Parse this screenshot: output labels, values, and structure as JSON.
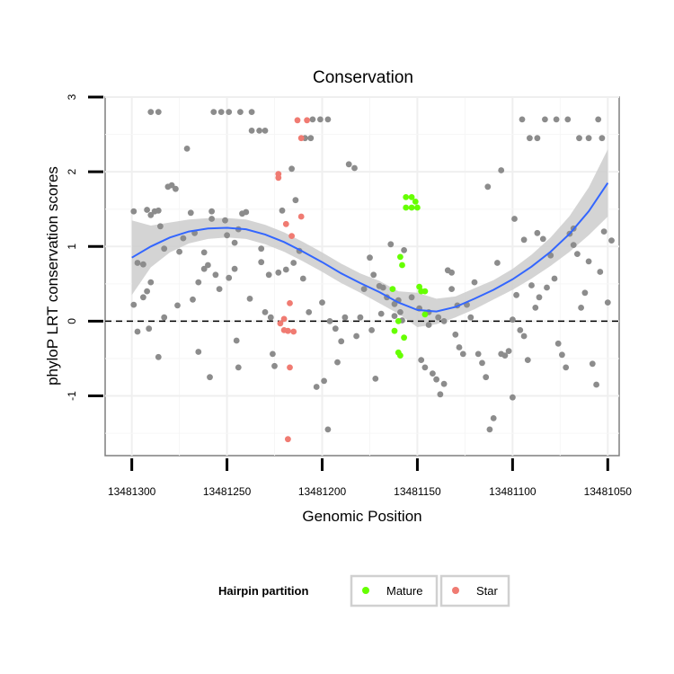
{
  "chart_data": {
    "type": "scatter",
    "title": "Conservation",
    "xlabel": "Genomic Position",
    "ylabel": "phyloP LRT conservation scores",
    "x_reversed": true,
    "xlim": [
      13481314,
      13481044
    ],
    "ylim": [
      -1.8,
      3.0
    ],
    "x_ticks": [
      13481300,
      13481250,
      13481200,
      13481150,
      13481100,
      13481050
    ],
    "x_tick_labels": [
      "13481300",
      "13481250",
      "13481200",
      "13481150",
      "13481100",
      "13481050"
    ],
    "y_ticks": [
      -1,
      0,
      1,
      2,
      3
    ],
    "y_tick_labels": [
      "-1",
      "0",
      "1",
      "2",
      "3"
    ],
    "reference_line": {
      "y": 0,
      "style": "dashed"
    },
    "legend": {
      "title": "Hairpin partition",
      "position": "bottom",
      "entries": [
        {
          "label": "Mature",
          "color": "#66ff00"
        },
        {
          "label": "Star",
          "color": "#f07b72"
        }
      ]
    },
    "colors": {
      "other": "#8c8c8c",
      "mature": "#66ff00",
      "star": "#f07b72",
      "smooth": "#3366ff",
      "band": "#cccccc"
    },
    "series": [
      {
        "points": [
          [
            13481299,
            1.47
          ],
          [
            13481297,
            0.78
          ],
          [
            13481294,
            0.76
          ],
          [
            13481299,
            0.22
          ],
          [
            13481297,
            -0.14
          ],
          [
            13481294,
            0.32
          ],
          [
            13481292,
            1.49
          ],
          [
            13481290,
            1.42
          ],
          [
            13481292,
            0.4
          ],
          [
            13481288,
            1.47
          ],
          [
            13481286,
            1.48
          ],
          [
            13481285,
            1.27
          ],
          [
            13481283,
            0.97
          ],
          [
            13481286,
            -0.48
          ],
          [
            13481283,
            0.05
          ],
          [
            13481281,
            1.8
          ],
          [
            13481279,
            1.82
          ],
          [
            13481290,
            2.8
          ],
          [
            13481286,
            2.8
          ],
          [
            13481277,
            1.77
          ],
          [
            13481275,
            0.93
          ],
          [
            13481273,
            1.11
          ],
          [
            13481276,
            0.21
          ],
          [
            13481271,
            2.31
          ],
          [
            13481269,
            1.45
          ],
          [
            13481267,
            1.18
          ],
          [
            13481265,
            0.52
          ],
          [
            13481268,
            0.29
          ],
          [
            13481265,
            -0.41
          ],
          [
            13481262,
            0.7
          ],
          [
            13481260,
            0.75
          ],
          [
            13481258,
            1.47
          ],
          [
            13481259,
            -0.75
          ],
          [
            13481257,
            2.8
          ],
          [
            13481253,
            2.8
          ],
          [
            13481249,
            2.8
          ],
          [
            13481243,
            2.8
          ],
          [
            13481237,
            2.8
          ],
          [
            13481256,
            0.62
          ],
          [
            13481254,
            0.43
          ],
          [
            13481251,
            1.35
          ],
          [
            13481249,
            0.58
          ],
          [
            13481246,
            0.7
          ],
          [
            13481244,
            1.23
          ],
          [
            13481242,
            1.44
          ],
          [
            13481245,
            -0.26
          ],
          [
            13481244,
            -0.62
          ],
          [
            13481240,
            1.46
          ],
          [
            13481238,
            0.3
          ],
          [
            13481237,
            2.55
          ],
          [
            13481233,
            2.55
          ],
          [
            13481230,
            2.55
          ],
          [
            13481232,
            0.97
          ],
          [
            13481230,
            0.12
          ],
          [
            13481228,
            0.62
          ],
          [
            13481232,
            0.79
          ],
          [
            13481226,
            -0.44
          ],
          [
            13481225,
            -0.6
          ],
          [
            13481227,
            0.05
          ],
          [
            13481223,
            0.65
          ],
          [
            13481221,
            1.48
          ],
          [
            13481219,
            0.69
          ],
          [
            13481216,
            2.04
          ],
          [
            13481214,
            1.62
          ],
          [
            13481212,
            0.94
          ],
          [
            13481210,
            0.57
          ],
          [
            13481207,
            0.12
          ],
          [
            13481205,
            2.7
          ],
          [
            13481201,
            2.7
          ],
          [
            13481197,
            2.7
          ],
          [
            13481209,
            2.45
          ],
          [
            13481206,
            2.45
          ],
          [
            13481203,
            -0.88
          ],
          [
            13481200,
            0.25
          ],
          [
            13481196,
            0.0
          ],
          [
            13481193,
            -0.1
          ],
          [
            13481190,
            -0.27
          ],
          [
            13481188,
            0.05
          ],
          [
            13481192,
            -0.55
          ],
          [
            13481199,
            -0.8
          ],
          [
            13481197,
            -1.45
          ],
          [
            13481186,
            2.1
          ],
          [
            13481183,
            2.05
          ],
          [
            13481180,
            0.05
          ],
          [
            13481178,
            0.43
          ],
          [
            13481182,
            -0.2
          ],
          [
            13481175,
            0.85
          ],
          [
            13481173,
            0.62
          ],
          [
            13481170,
            0.47
          ],
          [
            13481168,
            0.45
          ],
          [
            13481166,
            0.32
          ],
          [
            13481172,
            -0.77
          ],
          [
            13481169,
            0.1
          ],
          [
            13481164,
            1.03
          ],
          [
            13481162,
            0.07
          ],
          [
            13481159,
            0.12
          ],
          [
            13481157,
            0.95
          ],
          [
            13481148,
            -0.52
          ],
          [
            13481146,
            -0.62
          ],
          [
            13481144,
            -0.05
          ],
          [
            13481142,
            -0.7
          ],
          [
            13481140,
            -0.78
          ],
          [
            13481138,
            -0.98
          ],
          [
            13481136,
            -0.84
          ],
          [
            13481134,
            0.68
          ],
          [
            13481132,
            0.43
          ],
          [
            13481130,
            -0.18
          ],
          [
            13481128,
            -0.35
          ],
          [
            13481126,
            -0.44
          ],
          [
            13481124,
            0.22
          ],
          [
            13481122,
            0.05
          ],
          [
            13481120,
            0.52
          ],
          [
            13481118,
            -0.44
          ],
          [
            13481116,
            -0.56
          ],
          [
            13481114,
            -0.75
          ],
          [
            13481112,
            -1.45
          ],
          [
            13481110,
            -1.3
          ],
          [
            13481108,
            0.78
          ],
          [
            13481106,
            -0.44
          ],
          [
            13481104,
            -0.46
          ],
          [
            13481102,
            -0.4
          ],
          [
            13481100,
            0.02
          ],
          [
            13481098,
            0.35
          ],
          [
            13481096,
            -0.12
          ],
          [
            13481094,
            -0.2
          ],
          [
            13481092,
            -0.52
          ],
          [
            13481090,
            0.48
          ],
          [
            13481088,
            0.18
          ],
          [
            13481086,
            0.32
          ],
          [
            13481084,
            1.1
          ],
          [
            13481082,
            0.45
          ],
          [
            13481080,
            0.88
          ],
          [
            13481078,
            0.57
          ],
          [
            13481076,
            -0.3
          ],
          [
            13481074,
            -0.45
          ],
          [
            13481072,
            -0.62
          ],
          [
            13481070,
            1.17
          ],
          [
            13481068,
            1.02
          ],
          [
            13481066,
            0.9
          ],
          [
            13481064,
            0.18
          ],
          [
            13481062,
            0.38
          ],
          [
            13481060,
            0.8
          ],
          [
            13481058,
            -0.57
          ],
          [
            13481056,
            -0.85
          ],
          [
            13481054,
            0.66
          ],
          [
            13481052,
            1.2
          ],
          [
            13481050,
            0.25
          ],
          [
            13481048,
            1.08
          ],
          [
            13481106,
            2.02
          ],
          [
            13481113,
            1.8
          ],
          [
            13481099,
            1.37
          ],
          [
            13481094,
            1.09
          ],
          [
            13481087,
            1.18
          ],
          [
            13481068,
            1.24
          ],
          [
            13481095,
            2.7
          ],
          [
            13481083,
            2.7
          ],
          [
            13481077,
            2.7
          ],
          [
            13481071,
            2.7
          ],
          [
            13481091,
            2.45
          ],
          [
            13481087,
            2.45
          ],
          [
            13481065,
            2.45
          ],
          [
            13481060,
            2.45
          ],
          [
            13481053,
            2.45
          ],
          [
            13481055,
            2.7
          ],
          [
            13481100,
            -1.02
          ],
          [
            13481149,
            0.17
          ],
          [
            13481153,
            0.32
          ],
          [
            13481144,
            0.12
          ],
          [
            13481139,
            0.05
          ],
          [
            13481136,
            0.0
          ],
          [
            13481132,
            0.65
          ],
          [
            13481129,
            0.21
          ],
          [
            13481174,
            -0.12
          ],
          [
            13481162,
            0.23
          ],
          [
            13481160,
            0.28
          ],
          [
            13481158,
            0.01
          ],
          [
            13481215,
            0.78
          ],
          [
            13481250,
            1.15
          ],
          [
            13481258,
            1.37
          ],
          [
            13481290,
            0.52
          ],
          [
            13481291,
            -0.1
          ],
          [
            13481262,
            0.92
          ],
          [
            13481246,
            1.05
          ]
        ]
      },
      {
        "name": "Mature",
        "points": [
          [
            13481156,
            1.66
          ],
          [
            13481153,
            1.66
          ],
          [
            13481151,
            1.6
          ],
          [
            13481150,
            1.52
          ],
          [
            13481153,
            1.52
          ],
          [
            13481156,
            1.52
          ],
          [
            13481159,
            0.86
          ],
          [
            13481158,
            0.75
          ],
          [
            13481163,
            0.43
          ],
          [
            13481160,
            0.0
          ],
          [
            13481162,
            -0.13
          ],
          [
            13481160,
            -0.42
          ],
          [
            13481159,
            -0.46
          ],
          [
            13481157,
            -0.22
          ],
          [
            13481148,
            0.4
          ],
          [
            13481149,
            0.46
          ],
          [
            13481146,
            0.4
          ],
          [
            13481146,
            0.09
          ]
        ]
      },
      {
        "name": "Star",
        "points": [
          [
            13481213,
            2.69
          ],
          [
            13481208,
            2.69
          ],
          [
            13481211,
            2.45
          ],
          [
            13481211,
            1.4
          ],
          [
            13481219,
            1.3
          ],
          [
            13481216,
            1.14
          ],
          [
            13481223,
            1.97
          ],
          [
            13481223,
            1.92
          ],
          [
            13481217,
            0.24
          ],
          [
            13481220,
            0.03
          ],
          [
            13481222,
            -0.03
          ],
          [
            13481220,
            -0.12
          ],
          [
            13481218,
            -0.13
          ],
          [
            13481215,
            -0.14
          ],
          [
            13481217,
            -0.62
          ],
          [
            13481218,
            -1.58
          ]
        ]
      }
    ],
    "smooth": {
      "x": [
        13481300,
        13481290,
        13481280,
        13481270,
        13481260,
        13481250,
        13481240,
        13481230,
        13481220,
        13481210,
        13481200,
        13481190,
        13481180,
        13481170,
        13481160,
        13481150,
        13481140,
        13481130,
        13481120,
        13481110,
        13481100,
        13481090,
        13481080,
        13481070,
        13481060,
        13481050
      ],
      "y": [
        0.85,
        1.0,
        1.12,
        1.2,
        1.24,
        1.25,
        1.23,
        1.16,
        1.06,
        0.93,
        0.79,
        0.64,
        0.51,
        0.39,
        0.25,
        0.15,
        0.13,
        0.19,
        0.3,
        0.42,
        0.56,
        0.73,
        0.93,
        1.17,
        1.47,
        1.85
      ],
      "lower": [
        0.35,
        0.72,
        0.92,
        1.04,
        1.1,
        1.12,
        1.1,
        1.03,
        0.93,
        0.8,
        0.66,
        0.51,
        0.38,
        0.24,
        0.1,
        -0.08,
        -0.04,
        0.05,
        0.16,
        0.29,
        0.42,
        0.57,
        0.74,
        0.93,
        1.15,
        1.4
      ],
      "upper": [
        1.35,
        1.28,
        1.32,
        1.36,
        1.38,
        1.38,
        1.36,
        1.29,
        1.19,
        1.06,
        0.92,
        0.77,
        0.64,
        0.54,
        0.4,
        0.38,
        0.3,
        0.33,
        0.44,
        0.55,
        0.7,
        0.89,
        1.12,
        1.41,
        1.79,
        2.3
      ]
    }
  }
}
